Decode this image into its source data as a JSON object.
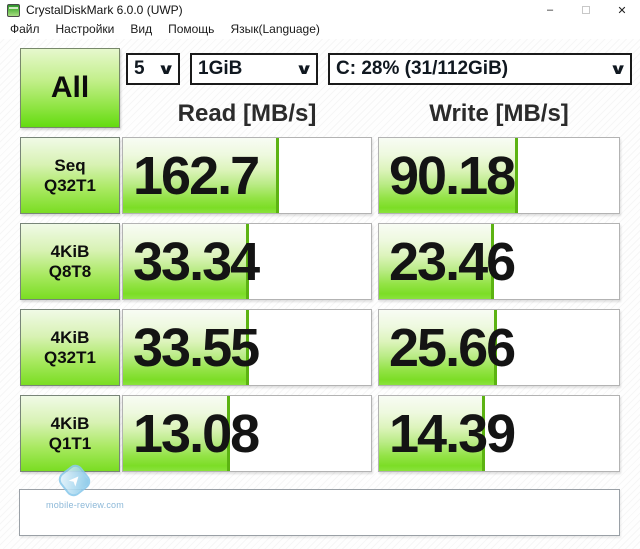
{
  "window": {
    "title": "CrystalDiskMark 6.0.0 (UWP)",
    "controls": {
      "minimize": "–",
      "close": "✕"
    }
  },
  "menu": {
    "items": [
      "Файл",
      "Настройки",
      "Вид",
      "Помощь",
      "Язык(Language)"
    ]
  },
  "toolbar": {
    "all_button_label": "All",
    "test_count": {
      "value": "5"
    },
    "test_size": {
      "value": "1GiB"
    },
    "drive": {
      "value": "C: 28% (31/112GiB)"
    }
  },
  "columns": {
    "read": "Read [MB/s]",
    "write": "Write [MB/s]"
  },
  "rows": [
    {
      "label_line1": "Seq",
      "label_line2": "Q32T1",
      "read": {
        "value": "162.7",
        "fill_pct": 63
      },
      "write": {
        "value": "90.18",
        "fill_pct": 58
      }
    },
    {
      "label_line1": "4KiB",
      "label_line2": "Q8T8",
      "read": {
        "value": "33.34",
        "fill_pct": 51
      },
      "write": {
        "value": "23.46",
        "fill_pct": 48
      }
    },
    {
      "label_line1": "4KiB",
      "label_line2": "Q32T1",
      "read": {
        "value": "33.55",
        "fill_pct": 51
      },
      "write": {
        "value": "25.66",
        "fill_pct": 49
      }
    },
    {
      "label_line1": "4KiB",
      "label_line2": "Q1T1",
      "read": {
        "value": "13.08",
        "fill_pct": 43
      },
      "write": {
        "value": "14.39",
        "fill_pct": 44
      }
    }
  ],
  "comment_box": {
    "value": ""
  },
  "watermark": {
    "text": "mobile-review.com"
  },
  "colors": {
    "accent_green": "#7add22",
    "fill_edge_green": "#5cb312",
    "watermark_blue": "#8cb8d8"
  }
}
